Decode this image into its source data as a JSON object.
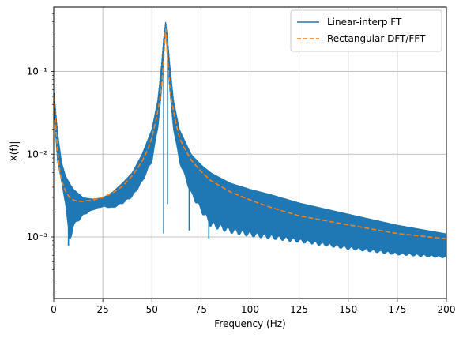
{
  "chart_data": {
    "type": "line",
    "title": "",
    "xlabel": "Frequency (Hz)",
    "ylabel": "|X(f)|",
    "xlim": [
      0,
      200
    ],
    "ylim": [
      0.00018,
      0.6
    ],
    "yscale": "log",
    "grid": true,
    "legend_position": "top-right",
    "x_ticks": [
      0,
      25,
      50,
      75,
      100,
      125,
      150,
      175,
      200
    ],
    "x_tick_labels": [
      "0",
      "25",
      "50",
      "75",
      "100",
      "125",
      "150",
      "175",
      "200"
    ],
    "y_ticks": [
      0.001,
      0.01,
      0.1
    ],
    "y_tick_labels": [
      "10⁻³",
      "10⁻²",
      "10⁻¹"
    ],
    "series": [
      {
        "name": "Linear-interp FT",
        "color": "#1f77b4",
        "style": "solid",
        "envelope_upper": [
          [
            0.2,
            0.055
          ],
          [
            2,
            0.018
          ],
          [
            4,
            0.008
          ],
          [
            6,
            0.0055
          ],
          [
            8,
            0.0045
          ],
          [
            10,
            0.0038
          ],
          [
            15,
            0.003
          ],
          [
            20,
            0.0029
          ],
          [
            25,
            0.003
          ],
          [
            30,
            0.0035
          ],
          [
            35,
            0.0045
          ],
          [
            40,
            0.006
          ],
          [
            45,
            0.01
          ],
          [
            50,
            0.02
          ],
          [
            53,
            0.045
          ],
          [
            55,
            0.13
          ],
          [
            56,
            0.25
          ],
          [
            57,
            0.4
          ],
          [
            58,
            0.25
          ],
          [
            59,
            0.13
          ],
          [
            61,
            0.045
          ],
          [
            64,
            0.02
          ],
          [
            70,
            0.01
          ],
          [
            75,
            0.0075
          ],
          [
            80,
            0.006
          ],
          [
            90,
            0.0045
          ],
          [
            100,
            0.0038
          ],
          [
            110,
            0.0033
          ],
          [
            125,
            0.0026
          ],
          [
            150,
            0.0019
          ],
          [
            175,
            0.0014
          ],
          [
            200,
            0.0011
          ]
        ],
        "envelope_lower": [
          [
            0.2,
            0.03
          ],
          [
            2,
            0.008
          ],
          [
            4,
            0.0045
          ],
          [
            6,
            0.0025
          ],
          [
            8,
            0.0008
          ],
          [
            10,
            0.0013
          ],
          [
            15,
            0.0018
          ],
          [
            20,
            0.0021
          ],
          [
            25,
            0.0023
          ],
          [
            30,
            0.0022
          ],
          [
            35,
            0.0025
          ],
          [
            40,
            0.003
          ],
          [
            45,
            0.0045
          ],
          [
            50,
            0.008
          ],
          [
            53,
            0.02
          ],
          [
            55,
            0.06
          ],
          [
            57,
            0.35
          ],
          [
            59,
            0.06
          ],
          [
            61,
            0.02
          ],
          [
            64,
            0.008
          ],
          [
            70,
            0.0032
          ],
          [
            75,
            0.002
          ],
          [
            80,
            0.0013
          ],
          [
            90,
            0.0011
          ],
          [
            100,
            0.001
          ],
          [
            125,
            0.00085
          ],
          [
            150,
            0.0007
          ],
          [
            175,
            0.0006
          ],
          [
            200,
            0.00055
          ]
        ],
        "dips": [
          [
            7.5,
            0.00078
          ],
          [
            56,
            0.0011
          ],
          [
            58,
            0.0025
          ],
          [
            69,
            0.0012
          ],
          [
            79,
            0.00095
          ]
        ]
      },
      {
        "name": "Rectangular DFT/FFT",
        "color": "#ff7f0e",
        "style": "dashed",
        "points": [
          [
            0.2,
            0.05
          ],
          [
            1,
            0.022
          ],
          [
            2,
            0.011
          ],
          [
            3,
            0.0065
          ],
          [
            4,
            0.0048
          ],
          [
            6,
            0.0036
          ],
          [
            8,
            0.003
          ],
          [
            10,
            0.0028
          ],
          [
            12,
            0.0027
          ],
          [
            15,
            0.0027
          ],
          [
            20,
            0.0028
          ],
          [
            25,
            0.003
          ],
          [
            30,
            0.0034
          ],
          [
            35,
            0.0041
          ],
          [
            40,
            0.0055
          ],
          [
            45,
            0.0082
          ],
          [
            48,
            0.0115
          ],
          [
            50,
            0.016
          ],
          [
            52,
            0.025
          ],
          [
            54,
            0.045
          ],
          [
            55,
            0.07
          ],
          [
            56,
            0.14
          ],
          [
            56.5,
            0.22
          ],
          [
            57,
            0.33
          ],
          [
            57.5,
            0.22
          ],
          [
            58,
            0.14
          ],
          [
            59,
            0.07
          ],
          [
            60,
            0.045
          ],
          [
            62,
            0.025
          ],
          [
            64,
            0.016
          ],
          [
            66,
            0.0125
          ],
          [
            70,
            0.0085
          ],
          [
            75,
            0.0062
          ],
          [
            80,
            0.0048
          ],
          [
            90,
            0.0035
          ],
          [
            100,
            0.0028
          ],
          [
            110,
            0.0023
          ],
          [
            125,
            0.0018
          ],
          [
            150,
            0.0014
          ],
          [
            175,
            0.0011
          ],
          [
            200,
            0.00095
          ]
        ]
      }
    ]
  }
}
